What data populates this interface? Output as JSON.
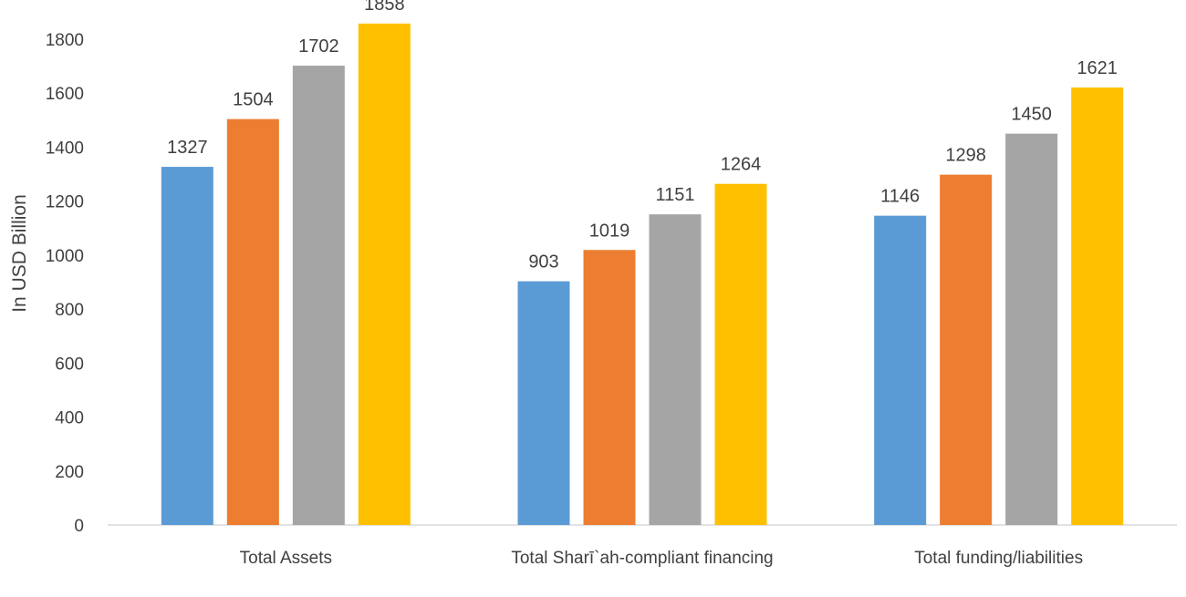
{
  "chart_data": {
    "type": "bar",
    "ylabel": "In USD Billion",
    "categories": [
      "Total Assets",
      "Total Sharī`ah-compliant financing",
      "Total funding/liabilities"
    ],
    "series": [
      {
        "color": "#5B9BD5",
        "values": [
          1327,
          903,
          1146
        ]
      },
      {
        "color": "#ED7D31",
        "values": [
          1504,
          1019,
          1298
        ]
      },
      {
        "color": "#A5A5A5",
        "values": [
          1702,
          1151,
          1450
        ]
      },
      {
        "color": "#FFC000",
        "values": [
          1858,
          1264,
          1621
        ]
      }
    ],
    "ylim": [
      0,
      1800
    ],
    "yticks": [
      0,
      200,
      400,
      600,
      800,
      1000,
      1200,
      1400,
      1600,
      1800
    ],
    "grid": false,
    "data_labels": true
  }
}
